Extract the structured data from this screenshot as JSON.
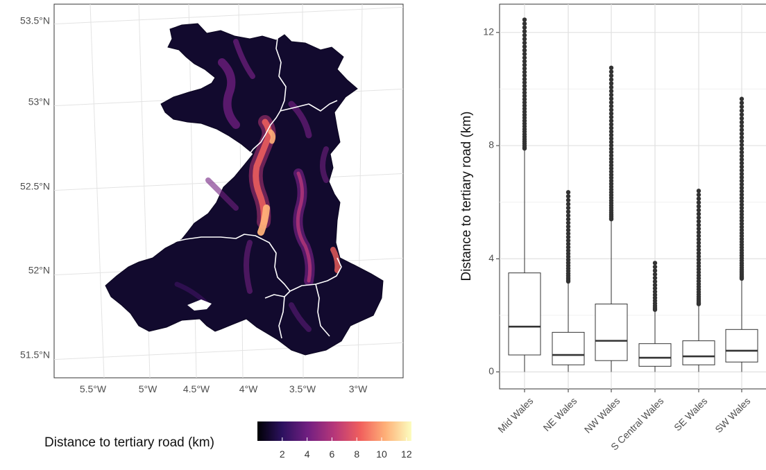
{
  "chart_data": [
    {
      "type": "heatmap",
      "title": "",
      "xlabel": "",
      "ylabel": "",
      "x_ticks": [
        "5.5°W",
        "5°W",
        "4.5°W",
        "4°W",
        "3.5°W",
        "3°W"
      ],
      "y_ticks": [
        "51.5°N",
        "52°N",
        "52.5°N",
        "53°N",
        "53.5°N"
      ],
      "xlim": [
        -5.82,
        -2.57
      ],
      "ylim": [
        51.38,
        53.57
      ],
      "grid": true,
      "legend": {
        "title": "Distance to tertiary road (km)",
        "ticks": [
          "2",
          "4",
          "6",
          "8",
          "10",
          "12"
        ],
        "tick_values": [
          2,
          4,
          6,
          8,
          10,
          12
        ],
        "range": [
          0,
          12.4
        ],
        "colors": [
          "#000004",
          "#2c115f",
          "#721f81",
          "#b73779",
          "#f1605d",
          "#feb078",
          "#fcfdbf"
        ],
        "placement": "bottom"
      },
      "regions": [
        "Mid Wales",
        "NE Wales",
        "NW Wales",
        "S Central Wales",
        "SE Wales",
        "SW Wales"
      ]
    },
    {
      "type": "box",
      "xlabel": "",
      "ylabel": "Distance to tertiary road (km)",
      "ylim": [
        -0.6,
        13.0
      ],
      "y_ticks": [
        0,
        4,
        8,
        12
      ],
      "grid": true,
      "categories": [
        "Mid Wales",
        "NE Wales",
        "NW Wales",
        "S Central Wales",
        "SE Wales",
        "SW Wales"
      ],
      "boxes": [
        {
          "min": 0,
          "q1": 0.6,
          "median": 1.6,
          "q3": 3.5,
          "max": 7.9,
          "outliers_from": 7.9,
          "outliers_to": 12.45
        },
        {
          "min": 0,
          "q1": 0.25,
          "median": 0.6,
          "q3": 1.4,
          "max": 3.2,
          "outliers_from": 3.2,
          "outliers_to": 6.35
        },
        {
          "min": 0,
          "q1": 0.4,
          "median": 1.1,
          "q3": 2.4,
          "max": 5.4,
          "outliers_from": 5.4,
          "outliers_to": 10.75
        },
        {
          "min": 0,
          "q1": 0.2,
          "median": 0.5,
          "q3": 1.0,
          "max": 2.2,
          "outliers_from": 2.2,
          "outliers_to": 3.85
        },
        {
          "min": 0,
          "q1": 0.25,
          "median": 0.55,
          "q3": 1.1,
          "max": 2.4,
          "outliers_from": 2.4,
          "outliers_to": 6.4
        },
        {
          "min": 0,
          "q1": 0.35,
          "median": 0.75,
          "q3": 1.5,
          "max": 3.3,
          "outliers_from": 3.3,
          "outliers_to": 9.65
        }
      ]
    }
  ]
}
